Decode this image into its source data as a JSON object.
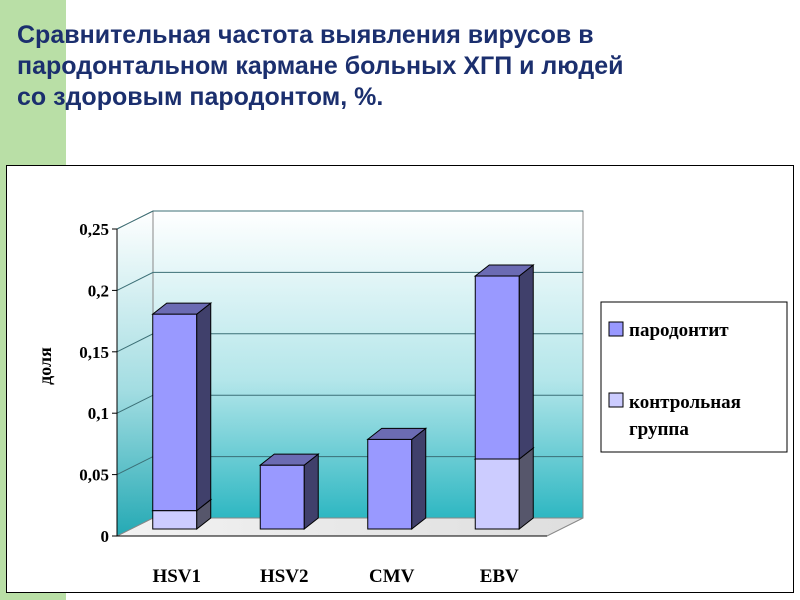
{
  "slide": {
    "title_lines": [
      "Сравнительная частота выявления вирусов в",
      "пародонтальном кармане больных ХГП и людей",
      "со здоровым пародонтом, %."
    ]
  },
  "colors": {
    "stripe": "#b9dfa6",
    "title": "#1b2f6e",
    "periodontitis": "#9999ff",
    "control": "#ccccff"
  },
  "chart_data": {
    "type": "bar",
    "stacked": true,
    "three_d": true,
    "title": "",
    "xlabel": "",
    "ylabel": "доля",
    "categories": [
      "HSV1",
      "HSV2",
      "CMV",
      "EBV"
    ],
    "ylim": [
      0,
      0.25
    ],
    "yticks": [
      0,
      0.05,
      0.1,
      0.15,
      0.2,
      0.25
    ],
    "ytick_labels": [
      "0",
      "0,05",
      "0,1",
      "0,15",
      "0,2",
      "0,25"
    ],
    "grid": true,
    "legend_position": "right",
    "series": [
      {
        "name": "контрольная группа",
        "values": [
          0.015,
          0,
          0,
          0.057
        ],
        "color": "#ccccff"
      },
      {
        "name": "пародонтит",
        "values": [
          0.16,
          0.052,
          0.073,
          0.149
        ],
        "color": "#9999ff"
      }
    ],
    "legend": [
      {
        "label": "пародонтит",
        "color": "#9999ff"
      },
      {
        "label": "контрольная группа",
        "color": "#ccccff"
      }
    ]
  }
}
